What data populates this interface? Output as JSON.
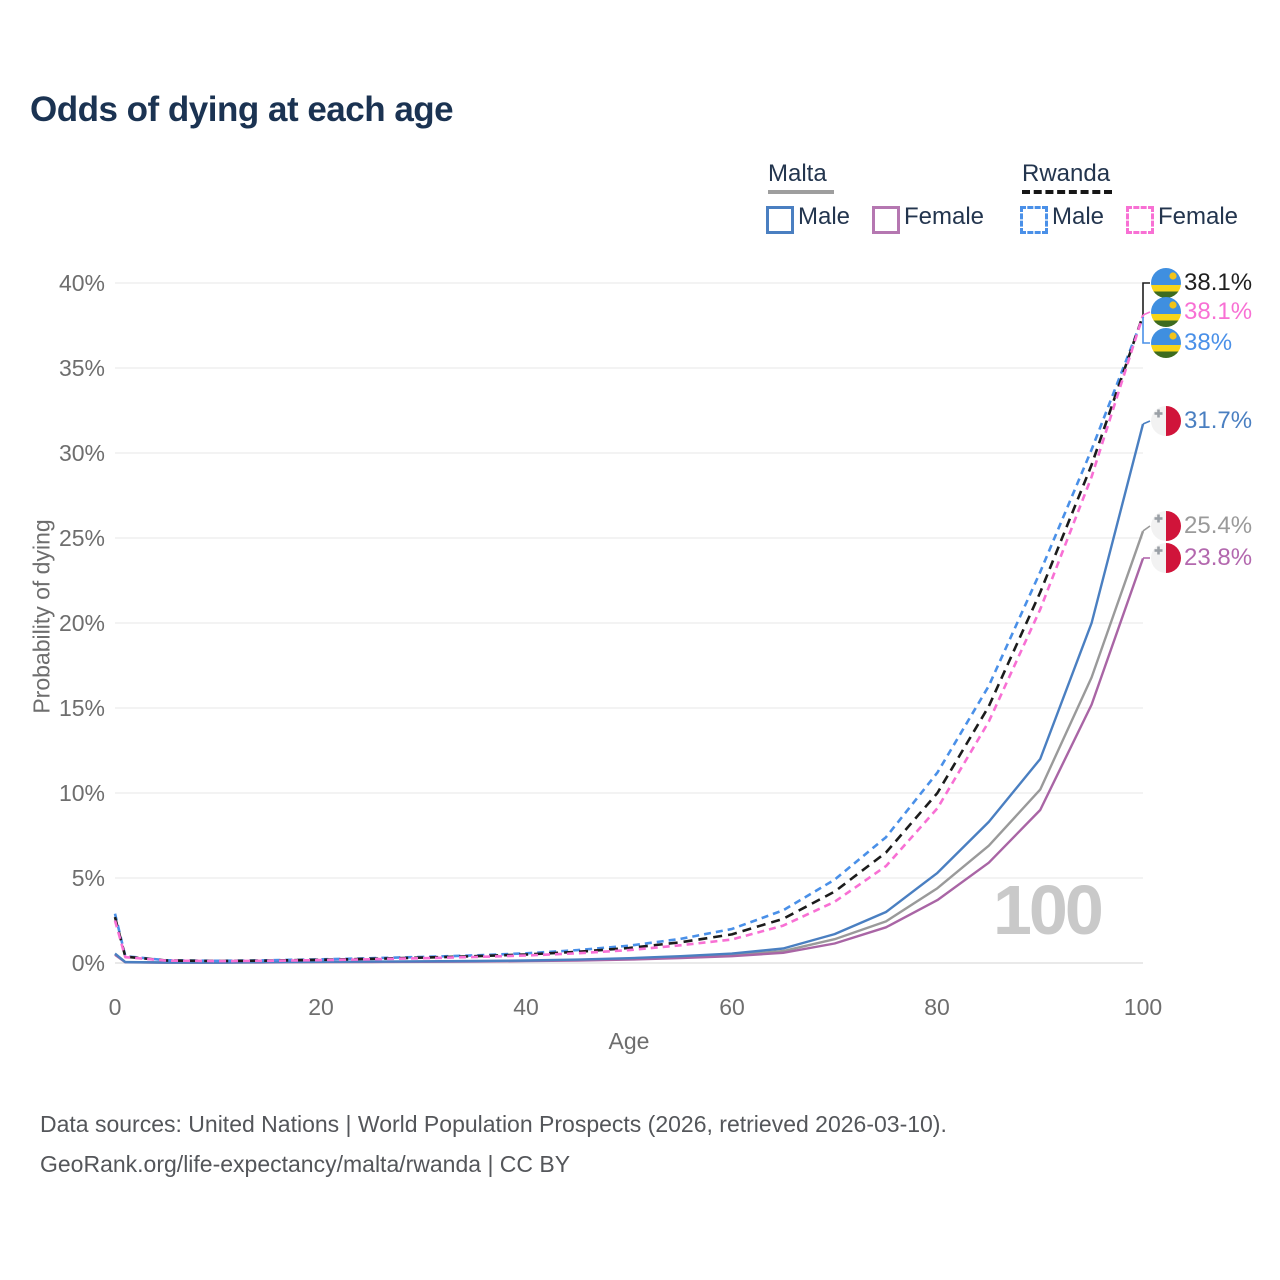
{
  "title": "Odds of dying at each age",
  "legend": {
    "malta": {
      "label": "Malta",
      "male": "Male",
      "female": "Female"
    },
    "rwanda": {
      "label": "Rwanda",
      "male": "Male",
      "female": "Female"
    }
  },
  "watermark": "100",
  "footer": {
    "line1": "Data sources: United Nations | World Population Prospects (2026, retrieved 2026-03-10).",
    "line2": "GeoRank.org/life-expectancy/malta/rwanda | CC BY"
  },
  "chart_data": {
    "type": "line",
    "title": "Odds of dying at each age",
    "xlabel": "Age",
    "ylabel": "Probability of dying",
    "xlim": [
      0,
      100
    ],
    "ylim": [
      0,
      40
    ],
    "grid": "horizontal",
    "legend_position": "top-right",
    "x_ticks": [
      "0",
      "20",
      "40",
      "60",
      "80",
      "100"
    ],
    "y_ticks": [
      "40%",
      "35%",
      "30%",
      "25%",
      "20%",
      "15%",
      "10%",
      "5%",
      "0%"
    ],
    "x": [
      0,
      1,
      5,
      10,
      15,
      20,
      25,
      30,
      35,
      40,
      45,
      50,
      55,
      60,
      65,
      70,
      75,
      80,
      85,
      90,
      95,
      100
    ],
    "series": [
      {
        "id": "rwanda-both",
        "name": "Rwanda (both sexes)",
        "country": "Rwanda",
        "sex": "Both",
        "style": "dashed",
        "color": "#1c1c1c",
        "label_color": "#1f1f1f",
        "flag": "rwanda",
        "end_label": "38.1%",
        "end_value": 38.1,
        "values": [
          2.7,
          0.37,
          0.15,
          0.12,
          0.14,
          0.19,
          0.25,
          0.32,
          0.4,
          0.5,
          0.66,
          0.88,
          1.22,
          1.68,
          2.6,
          4.2,
          6.5,
          10.0,
          15.1,
          21.8,
          29.3,
          38.1
        ]
      },
      {
        "id": "rwanda-female",
        "name": "Rwanda Female",
        "country": "Rwanda",
        "sex": "Female",
        "style": "dashed",
        "color": "#f870d4",
        "label_color": "#f870d4",
        "flag": "rwanda",
        "end_label": "38.1%",
        "end_value": 38.1,
        "values": [
          2.5,
          0.34,
          0.14,
          0.11,
          0.13,
          0.17,
          0.22,
          0.28,
          0.35,
          0.44,
          0.57,
          0.76,
          1.04,
          1.38,
          2.2,
          3.6,
          5.7,
          9.1,
          14.2,
          20.8,
          28.6,
          38.1
        ]
      },
      {
        "id": "rwanda-male",
        "name": "Rwanda Male",
        "country": "Rwanda",
        "sex": "Male",
        "style": "dashed",
        "color": "#4a90e8",
        "label_color": "#4a90e8",
        "flag": "rwanda",
        "end_label": "38%",
        "end_value": 38.0,
        "values": [
          2.9,
          0.4,
          0.16,
          0.13,
          0.16,
          0.22,
          0.28,
          0.36,
          0.45,
          0.57,
          0.76,
          1.02,
          1.42,
          2.0,
          3.1,
          4.9,
          7.4,
          11.2,
          16.3,
          23.0,
          30.2,
          38.0
        ]
      },
      {
        "id": "malta-male",
        "name": "Malta Male",
        "country": "Malta",
        "sex": "Male",
        "style": "solid",
        "color": "#4a7fc1",
        "label_color": "#4a7fc1",
        "flag": "malta",
        "end_label": "31.7%",
        "end_value": 31.7,
        "values": [
          0.55,
          0.05,
          0.03,
          0.03,
          0.05,
          0.07,
          0.08,
          0.1,
          0.12,
          0.15,
          0.2,
          0.28,
          0.4,
          0.55,
          0.85,
          1.7,
          3.0,
          5.3,
          8.3,
          12.0,
          20.0,
          31.7
        ]
      },
      {
        "id": "malta-both",
        "name": "Malta (both sexes)",
        "country": "Malta",
        "sex": "Both",
        "style": "solid",
        "color": "#9a9a9a",
        "label_color": "#9a9a9a",
        "flag": "malta",
        "end_label": "25.4%",
        "end_value": 25.4,
        "values": [
          0.5,
          0.045,
          0.025,
          0.025,
          0.04,
          0.055,
          0.07,
          0.08,
          0.1,
          0.13,
          0.17,
          0.24,
          0.34,
          0.47,
          0.7,
          1.4,
          2.45,
          4.4,
          6.9,
          10.2,
          16.8,
          25.4
        ]
      },
      {
        "id": "malta-female",
        "name": "Malta Female",
        "country": "Malta",
        "sex": "Female",
        "style": "solid",
        "color": "#a965a5",
        "label_color": "#b368ae",
        "flag": "malta",
        "end_label": "23.8%",
        "end_value": 23.8,
        "values": [
          0.48,
          0.04,
          0.02,
          0.02,
          0.035,
          0.05,
          0.06,
          0.07,
          0.09,
          0.11,
          0.15,
          0.2,
          0.29,
          0.4,
          0.6,
          1.15,
          2.1,
          3.7,
          5.9,
          9.0,
          15.2,
          23.8
        ]
      }
    ]
  }
}
